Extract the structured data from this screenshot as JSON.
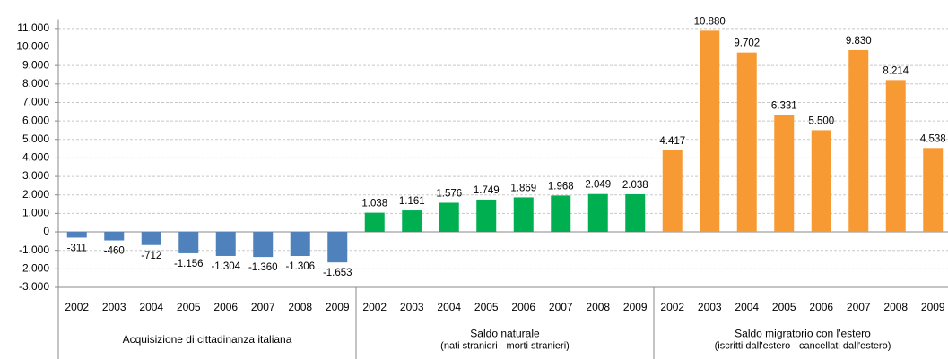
{
  "chart_data": {
    "type": "bar",
    "ylim": [
      -3000,
      11500
    ],
    "yticks": [
      {
        "value": -3000,
        "label": "-3.000"
      },
      {
        "value": -2000,
        "label": "-2.000"
      },
      {
        "value": -1000,
        "label": "-1.000"
      },
      0,
      {
        "value": 1000,
        "label": "1.000"
      },
      {
        "value": 2000,
        "label": "2.000"
      },
      {
        "value": 3000,
        "label": "3.000"
      },
      {
        "value": 4000,
        "label": "4.000"
      },
      {
        "value": 5000,
        "label": "5.000"
      },
      {
        "value": 6000,
        "label": "6.000"
      },
      {
        "value": 7000,
        "label": "7.000"
      },
      {
        "value": 8000,
        "label": "8.000"
      },
      {
        "value": 9000,
        "label": "9.000"
      },
      {
        "value": 10000,
        "label": "10.000"
      },
      {
        "value": 11000,
        "label": "11.000"
      }
    ],
    "grid": true,
    "groups": [
      {
        "label": [
          "Acquisizione di cittadinanza italiana"
        ],
        "color": "#4f81bd",
        "categories": [
          "2002",
          "2003",
          "2004",
          "2005",
          "2006",
          "2007",
          "2008",
          "2009"
        ],
        "values": [
          -311,
          -460,
          -712,
          -1156,
          -1304,
          -1360,
          -1306,
          -1653
        ],
        "value_labels": [
          "-311",
          "-460",
          "-712",
          "-1.156",
          "-1.304",
          "-1.360",
          "-1.306",
          "-1.653"
        ]
      },
      {
        "label": [
          "Saldo naturale",
          "(nati stranieri - morti stranieri)"
        ],
        "color": "#00b050",
        "categories": [
          "2002",
          "2003",
          "2004",
          "2005",
          "2006",
          "2007",
          "2008",
          "2009"
        ],
        "values": [
          1038,
          1161,
          1576,
          1749,
          1869,
          1968,
          2049,
          2038
        ],
        "value_labels": [
          "1.038",
          "1.161",
          "1.576",
          "1.749",
          "1.869",
          "1.968",
          "2.049",
          "2.038"
        ]
      },
      {
        "label": [
          "Saldo migratorio con l'estero",
          "(iscritti dall'estero  - cancellati dall'estero)"
        ],
        "color": "#f79a33",
        "categories": [
          "2002",
          "2003",
          "2004",
          "2005",
          "2006",
          "2007",
          "2008",
          "2009"
        ],
        "values": [
          4417,
          10880,
          9702,
          6331,
          5500,
          9830,
          8214,
          4538
        ],
        "value_labels": [
          "4.417",
          "10.880",
          "9.702",
          "6.331",
          "5.500",
          "9.830",
          "8.214",
          "4.538"
        ]
      }
    ]
  }
}
